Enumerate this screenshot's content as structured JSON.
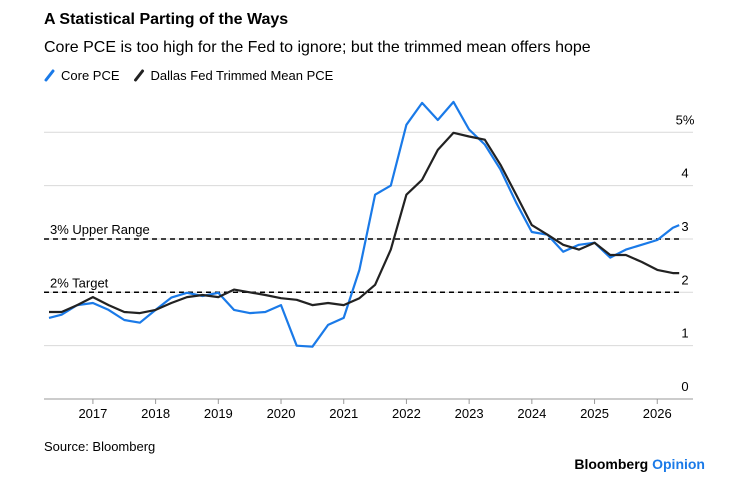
{
  "chart_data": {
    "type": "line",
    "title": "A Statistical Parting of the Ways",
    "subtitle": "Core PCE is too high for the Fed to ignore; but the trimmed mean offers hope",
    "source": "Source: Bloomberg",
    "brand": [
      "Bloomberg",
      "Opinion"
    ],
    "x": [
      2016.3,
      2016.5,
      2016.75,
      2017,
      2017.25,
      2017.5,
      2017.75,
      2018,
      2018.25,
      2018.5,
      2018.75,
      2019,
      2019.25,
      2019.5,
      2019.75,
      2020,
      2020.25,
      2020.5,
      2020.75,
      2021,
      2021.25,
      2021.5,
      2021.75,
      2022,
      2022.25,
      2022.5,
      2022.75,
      2023,
      2023.25,
      2023.5,
      2023.75,
      2024,
      2024.25,
      2024.5,
      2024.75,
      2025,
      2025.25,
      2025.5,
      2025.75,
      2026,
      2026.25,
      2026.35
    ],
    "series": [
      {
        "name": "Core PCE",
        "color": "#1a7ae8",
        "values": [
          1.52,
          1.58,
          1.76,
          1.8,
          1.67,
          1.48,
          1.43,
          1.67,
          1.9,
          1.99,
          1.93,
          1.99,
          1.67,
          1.61,
          1.63,
          1.76,
          1.0,
          0.98,
          1.39,
          1.52,
          2.42,
          3.83,
          4.0,
          5.14,
          5.55,
          5.23,
          5.57,
          5.05,
          4.77,
          4.3,
          3.68,
          3.13,
          3.08,
          2.76,
          2.89,
          2.93,
          2.65,
          2.8,
          2.89,
          2.98,
          3.21,
          3.26
        ]
      },
      {
        "name": "Dallas Fed Trimmed Mean PCE",
        "color": "#222222",
        "values": [
          1.63,
          1.63,
          1.76,
          1.91,
          1.76,
          1.63,
          1.61,
          1.67,
          1.8,
          1.91,
          1.95,
          1.91,
          2.05,
          2.0,
          1.95,
          1.89,
          1.86,
          1.76,
          1.8,
          1.76,
          1.89,
          2.14,
          2.8,
          3.83,
          4.11,
          4.67,
          4.99,
          4.92,
          4.86,
          4.39,
          3.83,
          3.26,
          3.08,
          2.89,
          2.8,
          2.93,
          2.7,
          2.7,
          2.57,
          2.42,
          2.36,
          2.36
        ]
      }
    ],
    "annotations": [
      {
        "text": "3% Upper Range",
        "y": 3
      },
      {
        "text": "2% Target",
        "y": 2
      }
    ],
    "xlim": [
      2016.22,
      2026.57
    ],
    "xticks": [
      2017,
      2018,
      2019,
      2020,
      2021,
      2022,
      2023,
      2024,
      2025,
      2026
    ],
    "ylim": [
      0,
      5.83
    ],
    "yticks": [
      0,
      1,
      2,
      3,
      4,
      {
        "value": 5,
        "label": "5%"
      }
    ],
    "grid": true,
    "legend": "top-left"
  }
}
